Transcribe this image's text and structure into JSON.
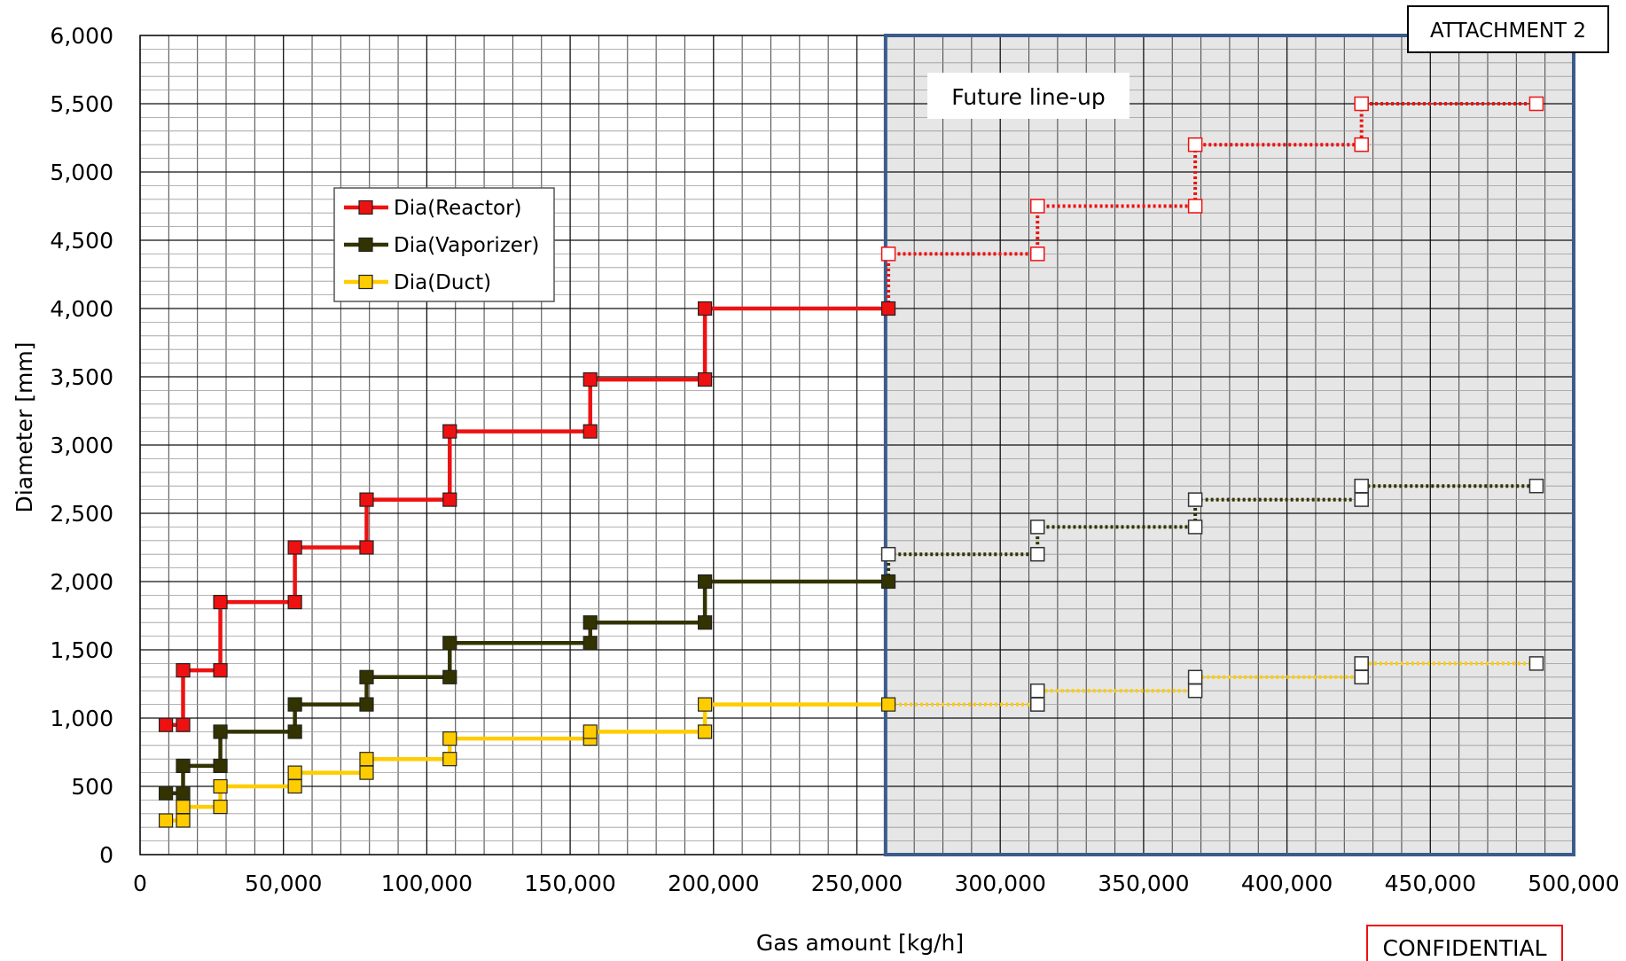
{
  "chart_data": {
    "type": "line",
    "title": "",
    "xlabel": "Gas amount [kg/h]",
    "ylabel": "Diameter [mm]",
    "xlim": [
      0,
      500000
    ],
    "ylim": [
      0,
      6000
    ],
    "x_ticks": [
      "0",
      "50,000",
      "100,000",
      "150,000",
      "200,000",
      "250,000",
      "300,000",
      "350,000",
      "400,000",
      "450,000",
      "500,000"
    ],
    "y_ticks": [
      "0",
      "500",
      "1,000",
      "1,500",
      "2,000",
      "2,500",
      "3,000",
      "3,500",
      "4,000",
      "4,500",
      "5,000",
      "5,500",
      "6,000"
    ],
    "grid": true,
    "legend_position": "upper-left",
    "annotations": {
      "future_label": "Future line-up",
      "future_region_x": [
        260000,
        500000
      ],
      "attachment": "ATTACHMENT 2",
      "confidential": "CONFIDENTIAL"
    },
    "series": [
      {
        "name": "Dia(Reactor)",
        "color": "#ee1111",
        "x": [
          9000,
          15000,
          15000,
          28000,
          28000,
          54000,
          54000,
          79000,
          79000,
          108000,
          108000,
          157000,
          157000,
          197000,
          197000,
          261000
        ],
        "y": [
          950,
          950,
          1350,
          1350,
          1850,
          1850,
          2250,
          2250,
          2600,
          2600,
          3100,
          3100,
          3480,
          3480,
          4000,
          4000
        ],
        "future_x": [
          261000,
          261000,
          313000,
          313000,
          368000,
          368000,
          426000,
          426000,
          487000
        ],
        "future_y": [
          4000,
          4400,
          4400,
          4750,
          4750,
          5200,
          5200,
          5500,
          5500
        ]
      },
      {
        "name": "Dia(Vaporizer)",
        "color": "#333300",
        "x": [
          9000,
          15000,
          15000,
          28000,
          28000,
          54000,
          54000,
          79000,
          79000,
          108000,
          108000,
          157000,
          157000,
          197000,
          197000,
          261000
        ],
        "y": [
          450,
          450,
          650,
          650,
          900,
          900,
          1100,
          1100,
          1300,
          1300,
          1550,
          1550,
          1700,
          1700,
          2000,
          2000
        ],
        "future_x": [
          261000,
          261000,
          313000,
          313000,
          368000,
          368000,
          426000,
          426000,
          487000
        ],
        "future_y": [
          2000,
          2200,
          2200,
          2400,
          2400,
          2600,
          2600,
          2700,
          2700
        ]
      },
      {
        "name": "Dia(Duct)",
        "color": "#ffcc00",
        "x": [
          9000,
          15000,
          15000,
          28000,
          28000,
          54000,
          54000,
          79000,
          79000,
          108000,
          108000,
          157000,
          157000,
          197000,
          197000,
          261000
        ],
        "y": [
          250,
          250,
          350,
          350,
          500,
          500,
          600,
          600,
          700,
          700,
          850,
          850,
          900,
          900,
          1100,
          1100
        ],
        "future_x": [
          261000,
          313000,
          313000,
          368000,
          368000,
          426000,
          426000,
          487000
        ],
        "future_y": [
          1100,
          1100,
          1200,
          1200,
          1300,
          1300,
          1400,
          1400
        ]
      }
    ]
  }
}
